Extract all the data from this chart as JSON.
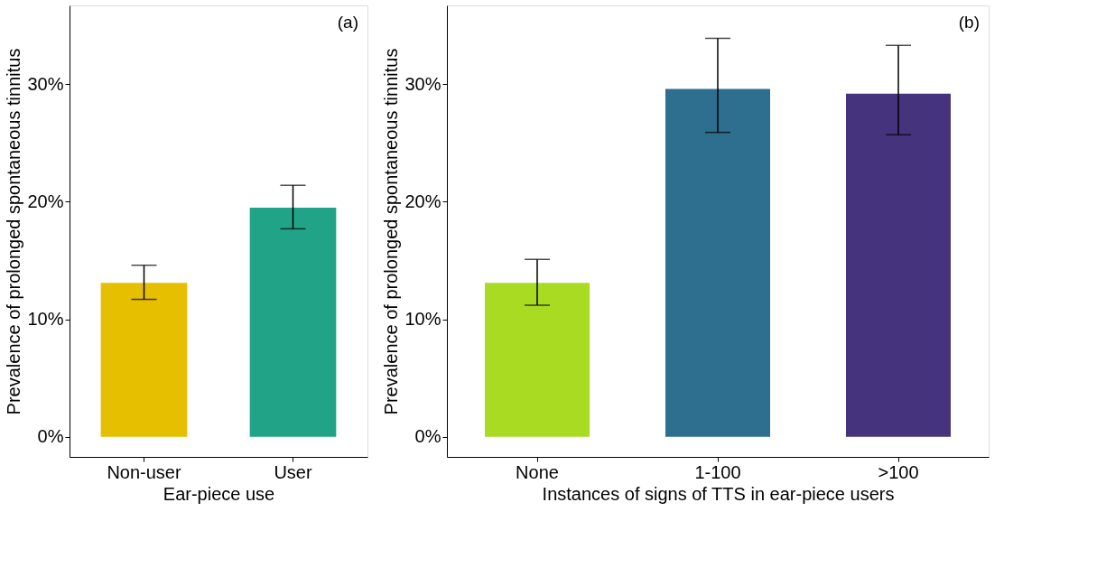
{
  "chart_data": [
    {
      "type": "bar",
      "categories": [
        "Non-user",
        "User"
      ],
      "values": [
        13.1,
        19.5
      ],
      "colors": [
        "#e6bf00",
        "#21a387"
      ],
      "errors": [
        [
          11.7,
          14.6
        ],
        [
          17.7,
          21.4
        ]
      ],
      "xlabel": "Ear-piece use",
      "ylabel": "Prevalence of prolonged spontaneous tinnitus",
      "ylim": [
        -1.7,
        36.7
      ],
      "yticks": [
        {
          "value": 0,
          "label": "0%"
        },
        {
          "value": 10,
          "label": "10%"
        },
        {
          "value": 20,
          "label": "20%"
        },
        {
          "value": 30,
          "label": "30%"
        }
      ],
      "annotations": [
        "(a)"
      ]
    },
    {
      "type": "bar",
      "categories": [
        "None",
        "1-100",
        ">100"
      ],
      "values": [
        13.1,
        29.6,
        29.2
      ],
      "colors": [
        "#a8db22",
        "#2e6e8e",
        "#46337e"
      ],
      "errors": [
        [
          11.2,
          15.1
        ],
        [
          25.9,
          33.9
        ],
        [
          25.7,
          33.3
        ]
      ],
      "xlabel": "Instances of signs of TTS in ear-piece users",
      "ylabel": "Prevalence of prolonged spontaneous tinnitus",
      "ylim": [
        -1.7,
        36.7
      ],
      "yticks": [
        {
          "value": 0,
          "label": "0%"
        },
        {
          "value": 10,
          "label": "10%"
        },
        {
          "value": 20,
          "label": "20%"
        },
        {
          "value": 30,
          "label": "30%"
        }
      ],
      "annotations": [
        "(b)"
      ]
    }
  ]
}
